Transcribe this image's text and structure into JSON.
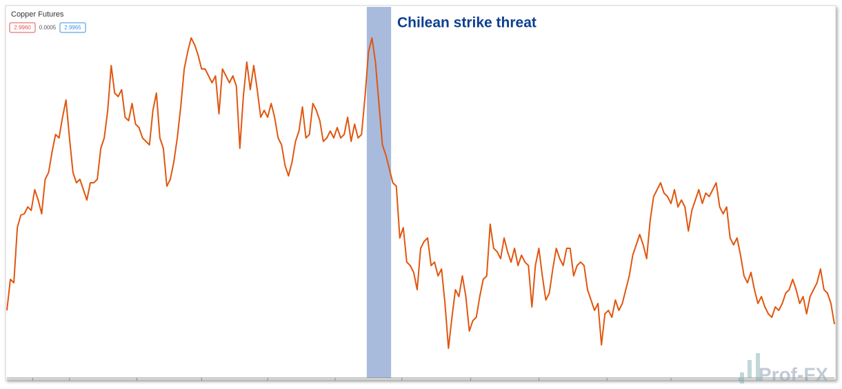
{
  "chart_data": {
    "type": "line",
    "title": "Copper Futures",
    "quote": {
      "bid": "2.9960",
      "spread": "0.0005",
      "ask": "2.9965"
    },
    "annotation": "Chilean strike threat",
    "watermark": "Prof-FX",
    "shaded_range": {
      "start": 103.5,
      "end": 110.5,
      "color": "#a8bbdd"
    },
    "color": "#e0560e",
    "ylim": [
      0,
      538
    ],
    "xticks": [
      7.4,
      18,
      37.4,
      56,
      75,
      94.4,
      113.6,
      133.4,
      153,
      172.6,
      191,
      210.6,
      230
    ],
    "values": [
      98,
      143,
      138,
      218,
      236,
      238,
      248,
      243,
      273,
      258,
      238,
      288,
      298,
      328,
      353,
      348,
      378,
      403,
      348,
      298,
      283,
      288,
      273,
      258,
      283,
      283,
      288,
      333,
      348,
      388,
      453,
      413,
      408,
      418,
      378,
      373,
      398,
      368,
      363,
      348,
      343,
      338,
      388,
      413,
      348,
      333,
      278,
      288,
      313,
      348,
      393,
      448,
      473,
      493,
      483,
      468,
      448,
      448,
      438,
      428,
      438,
      383,
      448,
      438,
      428,
      438,
      423,
      333,
      408,
      458,
      418,
      453,
      418,
      378,
      388,
      378,
      398,
      378,
      348,
      338,
      308,
      293,
      313,
      343,
      358,
      393,
      348,
      353,
      398,
      388,
      373,
      343,
      348,
      358,
      348,
      363,
      348,
      353,
      378,
      343,
      368,
      348,
      353,
      408,
      473,
      493,
      458,
      398,
      338,
      323,
      303,
      283,
      278,
      203,
      218,
      168,
      163,
      153,
      128,
      188,
      198,
      203,
      163,
      168,
      148,
      158,
      108,
      43,
      88,
      128,
      118,
      148,
      118,
      68,
      83,
      88,
      118,
      143,
      148,
      223,
      188,
      183,
      173,
      203,
      183,
      168,
      188,
      163,
      178,
      168,
      163,
      103,
      163,
      188,
      148,
      113,
      123,
      158,
      188,
      173,
      163,
      188,
      188,
      148,
      163,
      168,
      163,
      128,
      113,
      98,
      108,
      48,
      93,
      98,
      88,
      113,
      98,
      108,
      128,
      148,
      178,
      193,
      208,
      193,
      173,
      228,
      263,
      273,
      283,
      268,
      263,
      253,
      273,
      248,
      258,
      248,
      213,
      243,
      258,
      273,
      253,
      268,
      263,
      273,
      283,
      248,
      238,
      248,
      203,
      193,
      203,
      178,
      148,
      138,
      153,
      128,
      108,
      118,
      103,
      93,
      88,
      103,
      98,
      108,
      123,
      128,
      143,
      128,
      108,
      118,
      93,
      118,
      128,
      138,
      158,
      128,
      123,
      108,
      78
    ]
  }
}
